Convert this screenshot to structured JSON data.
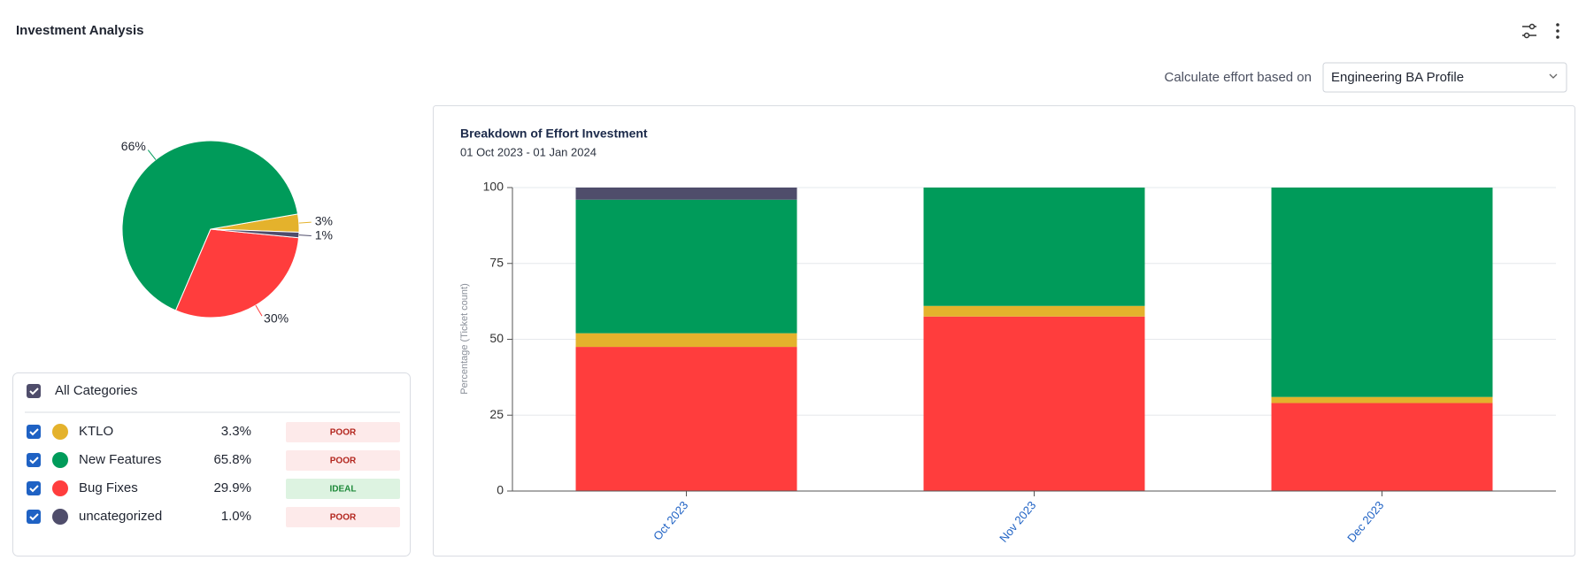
{
  "header": {
    "title": "Investment Analysis"
  },
  "control": {
    "label": "Calculate effort based on",
    "value": "Engineering BA Profile"
  },
  "legend": {
    "all": "All Categories",
    "rows": [
      {
        "percent": "3.3%",
        "status": "POOR"
      },
      {
        "percent": "65.8%",
        "status": "POOR"
      },
      {
        "percent": "29.9%",
        "status": "IDEAL"
      },
      {
        "percent": "1.0%",
        "status": "POOR"
      }
    ]
  },
  "chart_data": [
    {
      "type": "pie",
      "categories": [
        "KTLO",
        "New Features",
        "Bug Fixes",
        "uncategorized"
      ],
      "values": [
        3.3,
        65.8,
        29.9,
        1.0
      ],
      "value_labels": [
        "3%",
        "66%",
        "30%",
        "1%"
      ],
      "colors": [
        "#e4b22c",
        "#009b5a",
        "#ff3d3d",
        "#4f4d6b"
      ]
    },
    {
      "type": "bar",
      "stacked": true,
      "title": "Breakdown of Effort Investment",
      "subtitle": "01 Oct 2023 - 01 Jan 2024",
      "y_label": "Percentage (Ticket count)",
      "categories": [
        "Oct 2023",
        "Nov 2023",
        "Dec 2023"
      ],
      "series": [
        {
          "color": "#ff3d3d",
          "values": [
            47.5,
            57.5,
            29
          ]
        },
        {
          "color": "#e4b22c",
          "values": [
            4.5,
            3.5,
            2
          ]
        },
        {
          "color": "#009b5a",
          "values": [
            44,
            39,
            69
          ]
        },
        {
          "color": "#4f4d6b",
          "values": [
            4,
            0,
            0
          ]
        }
      ],
      "ylim": [
        0,
        100
      ],
      "yticks": [
        0,
        25,
        50,
        75,
        100
      ],
      "grid": true
    }
  ]
}
